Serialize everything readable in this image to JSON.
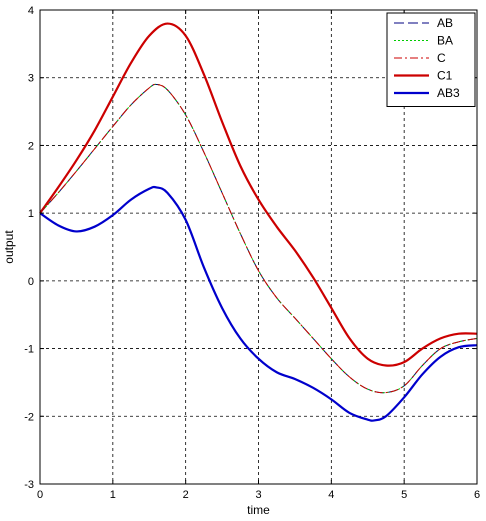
{
  "chart_data": {
    "type": "line",
    "title": "",
    "xlabel": "time",
    "ylabel": "output",
    "xlim": [
      0,
      6
    ],
    "ylim": [
      -3,
      4
    ],
    "xticks": [
      0,
      1,
      2,
      3,
      4,
      5,
      6
    ],
    "yticks": [
      -3,
      -2,
      -1,
      0,
      1,
      2,
      3,
      4
    ],
    "grid": true,
    "legend_position": "top-right",
    "series": [
      {
        "name": "AB",
        "color": "#000080",
        "style": "dash-long",
        "width": 1,
        "x": [
          0,
          0.25,
          0.5,
          0.75,
          1.0,
          1.25,
          1.5,
          1.6,
          1.75,
          2.0,
          2.25,
          2.5,
          2.75,
          3.0,
          3.25,
          3.5,
          3.75,
          4.0,
          4.25,
          4.5,
          4.75,
          5.0,
          5.25,
          5.5,
          5.75,
          6.0
        ],
        "y": [
          1.0,
          1.3,
          1.62,
          1.95,
          2.28,
          2.6,
          2.85,
          2.9,
          2.82,
          2.45,
          1.9,
          1.3,
          0.7,
          0.15,
          -0.25,
          -0.55,
          -0.85,
          -1.15,
          -1.42,
          -1.6,
          -1.65,
          -1.55,
          -1.25,
          -1.0,
          -0.9,
          -0.85
        ]
      },
      {
        "name": "BA",
        "color": "#00cc00",
        "style": "dotted",
        "width": 1,
        "x": [
          0,
          0.25,
          0.5,
          0.75,
          1.0,
          1.25,
          1.5,
          1.6,
          1.75,
          2.0,
          2.25,
          2.5,
          2.75,
          3.0,
          3.25,
          3.5,
          3.75,
          4.0,
          4.25,
          4.5,
          4.75,
          5.0,
          5.25,
          5.5,
          5.75,
          6.0
        ],
        "y": [
          1.0,
          1.3,
          1.62,
          1.95,
          2.28,
          2.6,
          2.85,
          2.9,
          2.82,
          2.45,
          1.9,
          1.3,
          0.7,
          0.15,
          -0.25,
          -0.55,
          -0.85,
          -1.15,
          -1.42,
          -1.6,
          -1.65,
          -1.55,
          -1.25,
          -1.0,
          -0.9,
          -0.85
        ]
      },
      {
        "name": "C",
        "color": "#cc0000",
        "style": "dashdot",
        "width": 1,
        "x": [
          0,
          0.25,
          0.5,
          0.75,
          1.0,
          1.25,
          1.5,
          1.6,
          1.75,
          2.0,
          2.25,
          2.5,
          2.75,
          3.0,
          3.25,
          3.5,
          3.75,
          4.0,
          4.25,
          4.5,
          4.75,
          5.0,
          5.25,
          5.5,
          5.75,
          6.0
        ],
        "y": [
          1.0,
          1.3,
          1.62,
          1.95,
          2.28,
          2.6,
          2.85,
          2.9,
          2.82,
          2.45,
          1.9,
          1.3,
          0.7,
          0.15,
          -0.25,
          -0.55,
          -0.85,
          -1.15,
          -1.42,
          -1.6,
          -1.65,
          -1.55,
          -1.25,
          -1.0,
          -0.9,
          -0.85
        ]
      },
      {
        "name": "C1",
        "color": "#cc0000",
        "style": "solid",
        "width": 2,
        "x": [
          0,
          0.25,
          0.5,
          0.75,
          1.0,
          1.25,
          1.5,
          1.75,
          2.0,
          2.25,
          2.5,
          2.75,
          3.0,
          3.25,
          3.5,
          3.75,
          4.0,
          4.25,
          4.5,
          4.75,
          5.0,
          5.25,
          5.5,
          5.75,
          6.0
        ],
        "y": [
          1.0,
          1.38,
          1.78,
          2.22,
          2.72,
          3.22,
          3.62,
          3.8,
          3.62,
          3.05,
          2.35,
          1.7,
          1.2,
          0.8,
          0.45,
          0.05,
          -0.4,
          -0.85,
          -1.15,
          -1.25,
          -1.2,
          -1.0,
          -0.85,
          -0.78,
          -0.78
        ]
      },
      {
        "name": "AB3",
        "color": "#0000cc",
        "style": "solid",
        "width": 2,
        "x": [
          0,
          0.25,
          0.5,
          0.75,
          1.0,
          1.25,
          1.5,
          1.6,
          1.75,
          2.0,
          2.25,
          2.5,
          2.75,
          3.0,
          3.25,
          3.5,
          3.75,
          4.0,
          4.25,
          4.5,
          4.6,
          4.75,
          5.0,
          5.25,
          5.5,
          5.75,
          6.0
        ],
        "y": [
          1.0,
          0.82,
          0.73,
          0.8,
          0.97,
          1.2,
          1.36,
          1.38,
          1.3,
          0.9,
          0.2,
          -0.4,
          -0.85,
          -1.15,
          -1.35,
          -1.45,
          -1.58,
          -1.75,
          -1.95,
          -2.05,
          -2.06,
          -2.0,
          -1.72,
          -1.38,
          -1.12,
          -0.98,
          -0.95
        ]
      }
    ]
  }
}
